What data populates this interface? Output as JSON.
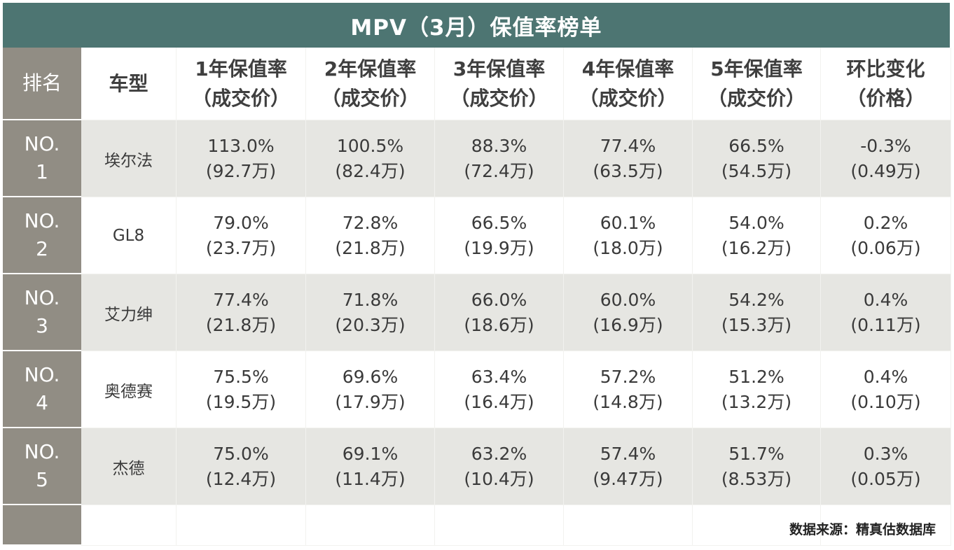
{
  "title": "MPV（3月）保值率榜单",
  "headers": {
    "rank": "排名",
    "model": "车型",
    "y1": [
      "1年保值率",
      "（成交价）"
    ],
    "y2": [
      "2年保值率",
      "（成交价）"
    ],
    "y3": [
      "3年保值率",
      "（成交价）"
    ],
    "y4": [
      "4年保值率",
      "（成交价）"
    ],
    "y5": [
      "5年保值率",
      "（成交价）"
    ],
    "mom": [
      "环比变化",
      "（价格）"
    ]
  },
  "rows": [
    {
      "rank": [
        "NO.",
        "1"
      ],
      "model": "埃尔法",
      "values": [
        [
          "113.0%",
          "(92.7万)"
        ],
        [
          "100.5%",
          "(82.4万)"
        ],
        [
          "88.3%",
          "(72.4万)"
        ],
        [
          "77.4%",
          "(63.5万)"
        ],
        [
          "66.5%",
          "(54.5万)"
        ],
        [
          "-0.3%",
          "(0.49万)"
        ]
      ]
    },
    {
      "rank": [
        "NO.",
        "2"
      ],
      "model": "GL8",
      "values": [
        [
          "79.0%",
          "(23.7万)"
        ],
        [
          "72.8%",
          "(21.8万)"
        ],
        [
          "66.5%",
          "(19.9万)"
        ],
        [
          "60.1%",
          "(18.0万)"
        ],
        [
          "54.0%",
          "(16.2万)"
        ],
        [
          "0.2%",
          "(0.06万)"
        ]
      ]
    },
    {
      "rank": [
        "NO.",
        "3"
      ],
      "model": "艾力绅",
      "values": [
        [
          "77.4%",
          "(21.8万)"
        ],
        [
          "71.8%",
          "(20.3万)"
        ],
        [
          "66.0%",
          "(18.6万)"
        ],
        [
          "60.0%",
          "(16.9万)"
        ],
        [
          "54.2%",
          "(15.3万)"
        ],
        [
          "0.4%",
          "(0.11万)"
        ]
      ]
    },
    {
      "rank": [
        "NO.",
        "4"
      ],
      "model": "奥德赛",
      "values": [
        [
          "75.5%",
          "(19.5万)"
        ],
        [
          "69.6%",
          "(17.9万)"
        ],
        [
          "63.4%",
          "(16.4万)"
        ],
        [
          "57.2%",
          "(14.8万)"
        ],
        [
          "51.2%",
          "(13.2万)"
        ],
        [
          "0.4%",
          "(0.10万)"
        ]
      ]
    },
    {
      "rank": [
        "NO.",
        "5"
      ],
      "model": "杰德",
      "values": [
        [
          "75.0%",
          "(12.4万)"
        ],
        [
          "69.1%",
          "(11.4万)"
        ],
        [
          "63.2%",
          "(10.4万)"
        ],
        [
          "57.4%",
          "(9.47万)"
        ],
        [
          "51.7%",
          "(8.53万)"
        ],
        [
          "0.3%",
          "(0.05万)"
        ]
      ]
    }
  ],
  "source": "数据来源：精真估数据库",
  "colors": {
    "title_bg": "#4d7572",
    "rank_bg": "#918d84",
    "shaded_row": "#e6e6e2",
    "text": "#3a3a3a"
  },
  "chart_data": {
    "type": "table",
    "title": "MPV（3月）保值率榜单",
    "columns": [
      "排名",
      "车型",
      "1年保值率（成交价）",
      "2年保值率（成交价）",
      "3年保值率（成交价）",
      "4年保值率（成交价）",
      "5年保值率（成交价）",
      "环比变化（价格）"
    ],
    "rows": [
      [
        "NO. 1",
        "埃尔法",
        "113.0% (92.7万)",
        "100.5% (82.4万)",
        "88.3% (72.4万)",
        "77.4% (63.5万)",
        "66.5% (54.5万)",
        "-0.3% (0.49万)"
      ],
      [
        "NO. 2",
        "GL8",
        "79.0% (23.7万)",
        "72.8% (21.8万)",
        "66.5% (19.9万)",
        "60.1% (18.0万)",
        "54.0% (16.2万)",
        "0.2% (0.06万)"
      ],
      [
        "NO. 3",
        "艾力绅",
        "77.4% (21.8万)",
        "71.8% (20.3万)",
        "66.0% (18.6万)",
        "60.0% (16.9万)",
        "54.2% (15.3万)",
        "0.4% (0.11万)"
      ],
      [
        "NO. 4",
        "奥德赛",
        "75.5% (19.5万)",
        "69.6% (17.9万)",
        "63.4% (16.4万)",
        "57.2% (14.8万)",
        "51.2% (13.2万)",
        "0.4% (0.10万)"
      ],
      [
        "NO. 5",
        "杰德",
        "75.0% (12.4万)",
        "69.1% (11.4万)",
        "63.2% (10.4万)",
        "57.4% (9.47万)",
        "51.7% (8.53万)",
        "0.3% (0.05万)"
      ]
    ]
  }
}
